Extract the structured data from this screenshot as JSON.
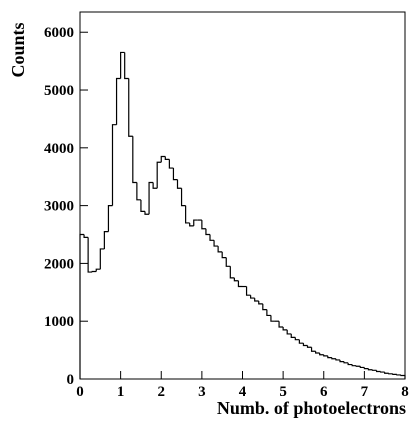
{
  "chart_data": {
    "type": "histogram",
    "x_label": "Numb. of photoelectrons",
    "y_label": "Counts",
    "bins": [
      0,
      0.1,
      0.2,
      0.3,
      0.4,
      0.5,
      0.6,
      0.7,
      0.8,
      0.9,
      1,
      1.1,
      1.2,
      1.3,
      1.4,
      1.5,
      1.6,
      1.7,
      1.8,
      1.9,
      2,
      2.1,
      2.2,
      2.3,
      2.4,
      2.5,
      2.6,
      2.7,
      2.8,
      2.9,
      3,
      3.1,
      3.2,
      3.3,
      3.4,
      3.5,
      3.6,
      3.7,
      3.8,
      3.9,
      4,
      4.1,
      4.2,
      4.3,
      4.4,
      4.5,
      4.6,
      4.7,
      4.8,
      4.9,
      5,
      5.1,
      5.2,
      5.3,
      5.4,
      5.5,
      5.6,
      5.7,
      5.8,
      5.9,
      6,
      6.1,
      6.2,
      6.3,
      6.4,
      6.5,
      6.6,
      6.7,
      6.8,
      6.9,
      7,
      7.1,
      7.2,
      7.3,
      7.4,
      7.5,
      7.6,
      7.7,
      7.8,
      7.9,
      8
    ],
    "values": [
      2500,
      2450,
      1850,
      1860,
      1900,
      2250,
      2550,
      3000,
      4400,
      5200,
      5650,
      5200,
      4200,
      3400,
      3100,
      2900,
      2850,
      3400,
      3300,
      3750,
      3850,
      3800,
      3650,
      3450,
      3300,
      3000,
      2700,
      2650,
      2750,
      2750,
      2600,
      2500,
      2400,
      2300,
      2200,
      2100,
      1950,
      1750,
      1700,
      1600,
      1600,
      1450,
      1400,
      1350,
      1300,
      1200,
      1100,
      1000,
      1000,
      900,
      850,
      780,
      720,
      680,
      620,
      580,
      550,
      480,
      450,
      420,
      400,
      370,
      350,
      330,
      300,
      280,
      250,
      230,
      220,
      200,
      180,
      160,
      150,
      130,
      120,
      100,
      90,
      80,
      70,
      60
    ],
    "color": "#000000",
    "xlim": [
      0,
      8
    ],
    "xticks": [
      0,
      1,
      2,
      3,
      4,
      5,
      6,
      7,
      8
    ],
    "ylim": [
      0,
      6350
    ],
    "yticks": [
      0,
      1000,
      2000,
      3000,
      4000,
      5000,
      6000
    ]
  }
}
